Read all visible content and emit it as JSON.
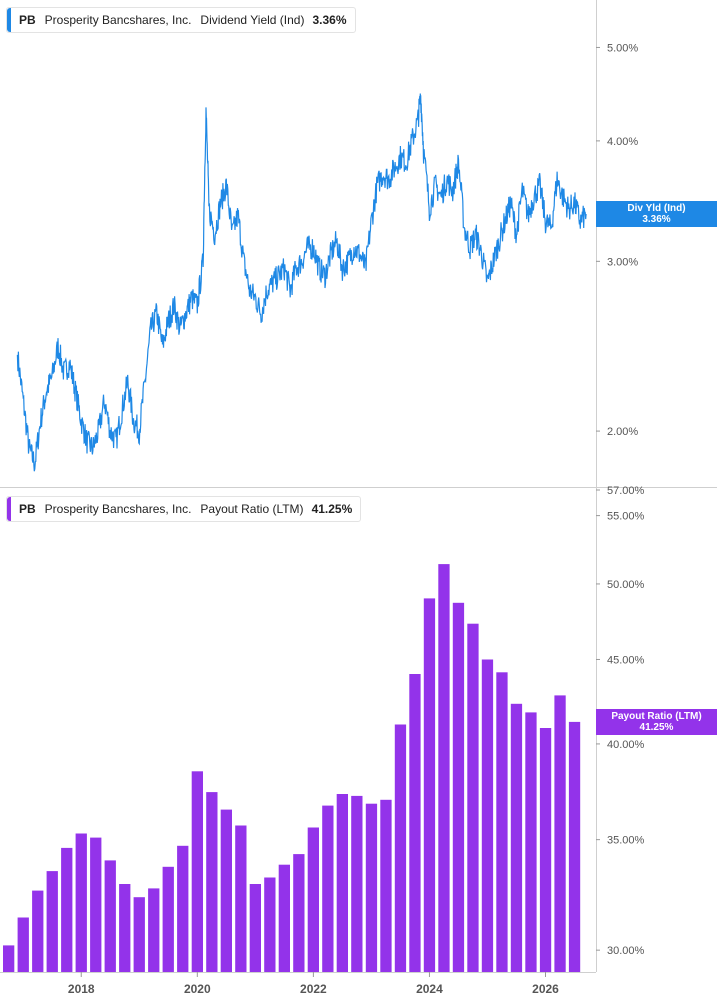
{
  "chart_data": [
    {
      "type": "line",
      "ticker": "PB",
      "company": "Prosperity Bancshares, Inc.",
      "metric": "Dividend Yield (Ind)",
      "current_value": "3.36%",
      "callout_label": "Div Yld (Ind)",
      "callout_value": "3.36%",
      "color": "#1e88e5",
      "y_scale": "log",
      "ylim": [
        1.75,
        5.6
      ],
      "y_ticks": [
        {
          "value": 2.0,
          "label": "2.00%"
        },
        {
          "value": 3.0,
          "label": "3.00%"
        },
        {
          "value": 4.0,
          "label": "4.00%"
        },
        {
          "value": 5.0,
          "label": "5.00%"
        }
      ],
      "x": [
        2016.9,
        2017.0,
        2017.1,
        2017.2,
        2017.3,
        2017.4,
        2017.5,
        2017.6,
        2017.7,
        2017.8,
        2017.9,
        2018.0,
        2018.1,
        2018.2,
        2018.3,
        2018.4,
        2018.5,
        2018.6,
        2018.7,
        2018.8,
        2018.9,
        2019.0,
        2019.1,
        2019.2,
        2019.3,
        2019.4,
        2019.5,
        2019.6,
        2019.7,
        2019.8,
        2019.9,
        2020.0,
        2020.1,
        2020.15,
        2020.2,
        2020.3,
        2020.4,
        2020.5,
        2020.6,
        2020.7,
        2020.8,
        2020.9,
        2021.0,
        2021.1,
        2021.2,
        2021.3,
        2021.4,
        2021.5,
        2021.6,
        2021.7,
        2021.8,
        2021.9,
        2022.0,
        2022.1,
        2022.2,
        2022.3,
        2022.4,
        2022.5,
        2022.6,
        2022.7,
        2022.8,
        2022.9,
        2023.0,
        2023.1,
        2023.2,
        2023.3,
        2023.4,
        2023.5,
        2023.6,
        2023.7,
        2023.8,
        2023.85,
        2023.9,
        2024.0,
        2024.1,
        2024.2,
        2024.3,
        2024.4,
        2024.5,
        2024.6,
        2024.7,
        2024.8,
        2024.9,
        2025.0,
        2025.1,
        2025.2,
        2025.3,
        2025.4,
        2025.5,
        2025.6,
        2025.7,
        2025.8,
        2025.9,
        2026.0,
        2026.1,
        2026.2,
        2026.3,
        2026.4,
        2026.5,
        2026.6,
        2026.7
      ],
      "y": [
        2.4,
        2.15,
        1.92,
        1.85,
        2.05,
        2.2,
        2.28,
        2.45,
        2.3,
        2.35,
        2.2,
        2.05,
        1.95,
        1.92,
        2.0,
        2.15,
        2.0,
        1.95,
        2.1,
        2.25,
        2.05,
        2.0,
        2.25,
        2.55,
        2.65,
        2.45,
        2.6,
        2.7,
        2.55,
        2.65,
        2.75,
        2.7,
        3.0,
        4.3,
        3.4,
        3.2,
        3.45,
        3.6,
        3.2,
        3.35,
        3.0,
        2.8,
        2.75,
        2.65,
        2.8,
        2.85,
        2.9,
        2.95,
        2.8,
        2.95,
        3.0,
        3.1,
        3.1,
        2.95,
        2.9,
        3.05,
        3.15,
        2.95,
        3.0,
        3.1,
        3.05,
        2.95,
        3.3,
        3.6,
        3.7,
        3.65,
        3.75,
        3.85,
        3.8,
        4.0,
        4.2,
        4.45,
        3.9,
        3.4,
        3.6,
        3.5,
        3.65,
        3.55,
        3.8,
        3.25,
        3.1,
        3.2,
        3.05,
        2.85,
        3.0,
        3.15,
        3.3,
        3.45,
        3.2,
        3.55,
        3.35,
        3.5,
        3.6,
        3.3,
        3.25,
        3.65,
        3.5,
        3.4,
        3.45,
        3.3,
        3.36
      ]
    },
    {
      "type": "bar",
      "ticker": "PB",
      "company": "Prosperity Bancshares, Inc.",
      "metric": "Payout Ratio (LTM)",
      "current_value": "41.25%",
      "callout_label": "Payout Ratio (LTM)",
      "callout_value": "41.25%",
      "color": "#9333ea",
      "y_scale": "log",
      "ylim": [
        29.1,
        57.0
      ],
      "y_ticks": [
        {
          "value": 30.0,
          "label": "30.00%"
        },
        {
          "value": 35.0,
          "label": "35.00%"
        },
        {
          "value": 40.0,
          "label": "40.00%"
        },
        {
          "value": 45.0,
          "label": "45.00%"
        },
        {
          "value": 50.0,
          "label": "50.00%"
        },
        {
          "value": 55.0,
          "label": "55.00%"
        },
        {
          "value": 57.0,
          "label": "57.00%"
        }
      ],
      "x": [
        2016.75,
        2017.0,
        2017.25,
        2017.5,
        2017.75,
        2018.0,
        2018.25,
        2018.5,
        2018.75,
        2019.0,
        2019.25,
        2019.5,
        2019.75,
        2020.0,
        2020.25,
        2020.5,
        2020.75,
        2021.0,
        2021.25,
        2021.5,
        2021.75,
        2022.0,
        2022.25,
        2022.5,
        2022.75,
        2023.0,
        2023.25,
        2023.5,
        2023.75,
        2024.0,
        2024.25,
        2024.5,
        2024.75,
        2025.0,
        2025.25,
        2025.5,
        2025.75,
        2026.0,
        2026.25,
        2026.5
      ],
      "values": [
        30.2,
        31.4,
        32.6,
        33.5,
        34.6,
        35.3,
        35.1,
        34.0,
        32.9,
        32.3,
        32.7,
        33.7,
        34.7,
        38.5,
        37.4,
        36.5,
        35.7,
        32.9,
        33.2,
        33.8,
        34.3,
        35.6,
        36.7,
        37.3,
        37.2,
        36.8,
        37.0,
        41.1,
        44.1,
        49.0,
        51.4,
        48.7,
        47.3,
        45.0,
        44.2,
        42.3,
        41.8,
        40.9,
        42.8,
        41.25
      ]
    }
  ],
  "x_axis": {
    "xlim": [
      2016.6,
      2026.87
    ],
    "ticks": [
      {
        "value": 2018,
        "label": "2018"
      },
      {
        "value": 2020,
        "label": "2020"
      },
      {
        "value": 2022,
        "label": "2022"
      },
      {
        "value": 2024,
        "label": "2024"
      },
      {
        "value": 2026,
        "label": "2026"
      }
    ]
  }
}
